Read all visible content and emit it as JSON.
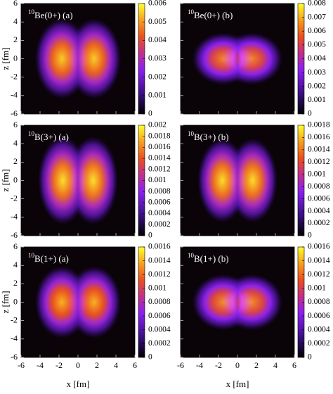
{
  "chart_data": [
    {
      "type": "heatmap",
      "label": {
        "sup": "10",
        "text": "Be(0+) (a)"
      },
      "ylabel": "z [fm]",
      "xlim": [
        -6,
        6
      ],
      "ylim": [
        -6,
        6
      ],
      "xticks": [
        -6,
        -4,
        -2,
        0,
        2,
        4,
        6
      ],
      "yticks": [
        -6,
        -4,
        -2,
        0,
        2,
        4,
        6
      ],
      "clim": [
        0,
        0.006
      ],
      "cticks": [
        0,
        0.001,
        0.002,
        0.003,
        0.004,
        0.005,
        0.006
      ],
      "blobs": [
        {
          "x": -1.7,
          "z": 0,
          "sx": 1.3,
          "sz": 2.0,
          "peak": 0.0055
        },
        {
          "x": 1.7,
          "z": 0,
          "sx": 1.3,
          "sz": 2.0,
          "peak": 0.0055
        }
      ]
    },
    {
      "type": "heatmap",
      "label": {
        "sup": "10",
        "text": "Be(0+) (b)"
      },
      "xlim": [
        -6,
        6
      ],
      "ylim": [
        -6,
        6
      ],
      "xticks": [
        -6,
        -4,
        -2,
        0,
        2,
        4,
        6
      ],
      "yticks": [
        -6,
        -4,
        -2,
        0,
        2,
        4,
        6
      ],
      "clim": [
        0,
        0.008
      ],
      "cticks": [
        0,
        0.001,
        0.002,
        0.003,
        0.004,
        0.005,
        0.006,
        0.007,
        0.008
      ],
      "blobs": [
        {
          "x": -1.5,
          "z": 0,
          "sx": 1.5,
          "sz": 1.3,
          "peak": 0.0064
        },
        {
          "x": 1.5,
          "z": 0,
          "sx": 1.5,
          "sz": 1.3,
          "peak": 0.0064
        }
      ]
    },
    {
      "type": "heatmap",
      "label": {
        "sup": "10",
        "text": "B(3+) (a)"
      },
      "ylabel": "z [fm]",
      "xlim": [
        -6,
        6
      ],
      "ylim": [
        -6,
        6
      ],
      "xticks": [
        -6,
        -4,
        -2,
        0,
        2,
        4,
        6
      ],
      "yticks": [
        -6,
        -4,
        -2,
        0,
        2,
        4,
        6
      ],
      "clim": [
        0,
        0.002
      ],
      "cticks": [
        0,
        0.0002,
        0.0004,
        0.0006,
        0.0008,
        0.001,
        0.0012,
        0.0014,
        0.0016,
        0.0018,
        0.002
      ],
      "blobs": [
        {
          "x": -1.6,
          "z": 0,
          "sx": 1.2,
          "sz": 2.2,
          "peak": 0.0019
        },
        {
          "x": 1.6,
          "z": 0,
          "sx": 1.2,
          "sz": 2.2,
          "peak": 0.0019
        }
      ]
    },
    {
      "type": "heatmap",
      "label": {
        "sup": "10",
        "text": "B(3+) (b)"
      },
      "xlim": [
        -6,
        6
      ],
      "ylim": [
        -6,
        6
      ],
      "xticks": [
        -6,
        -4,
        -2,
        0,
        2,
        4,
        6
      ],
      "yticks": [
        -6,
        -4,
        -2,
        0,
        2,
        4,
        6
      ],
      "clim": [
        0,
        0.0018
      ],
      "cticks": [
        0,
        0.0002,
        0.0004,
        0.0006,
        0.0008,
        0.001,
        0.0012,
        0.0014,
        0.0016,
        0.0018
      ],
      "blobs": [
        {
          "x": -1.6,
          "z": 0,
          "sx": 1.2,
          "sz": 2.1,
          "peak": 0.0017
        },
        {
          "x": 1.6,
          "z": 0,
          "sx": 1.2,
          "sz": 2.1,
          "peak": 0.0017
        }
      ]
    },
    {
      "type": "heatmap",
      "label": {
        "sup": "10",
        "text": "B(1+) (a)"
      },
      "ylabel": "z [fm]",
      "xlabel": "x [fm]",
      "xlim": [
        -6,
        6
      ],
      "ylim": [
        -6,
        6
      ],
      "xticks": [
        -6,
        -4,
        -2,
        0,
        2,
        4,
        6
      ],
      "yticks": [
        -6,
        -4,
        -2,
        0,
        2,
        4,
        6
      ],
      "clim": [
        0,
        0.0016
      ],
      "cticks": [
        0,
        0.0002,
        0.0004,
        0.0006,
        0.0008,
        0.001,
        0.0012,
        0.0014,
        0.0016
      ],
      "blobs": [
        {
          "x": -1.7,
          "z": 0,
          "sx": 1.3,
          "sz": 1.8,
          "peak": 0.0014
        },
        {
          "x": 1.7,
          "z": 0,
          "sx": 1.3,
          "sz": 1.8,
          "peak": 0.0014
        }
      ]
    },
    {
      "type": "heatmap",
      "label": {
        "sup": "10",
        "text": "B(1+) (b)"
      },
      "xlabel": "x [fm]",
      "xlim": [
        -6,
        6
      ],
      "ylim": [
        -6,
        6
      ],
      "xticks": [
        -6,
        -4,
        -2,
        0,
        2,
        4,
        6
      ],
      "yticks": [
        -6,
        -4,
        -2,
        0,
        2,
        4,
        6
      ],
      "clim": [
        0,
        0.0016
      ],
      "cticks": [
        0,
        0.0002,
        0.0004,
        0.0006,
        0.0008,
        0.001,
        0.0012,
        0.0014,
        0.0016
      ],
      "blobs": [
        {
          "x": -1.5,
          "z": 0,
          "sx": 1.5,
          "sz": 1.4,
          "peak": 0.0013
        },
        {
          "x": 1.5,
          "z": 0,
          "sx": 1.5,
          "sz": 1.4,
          "peak": 0.0013
        }
      ]
    }
  ]
}
